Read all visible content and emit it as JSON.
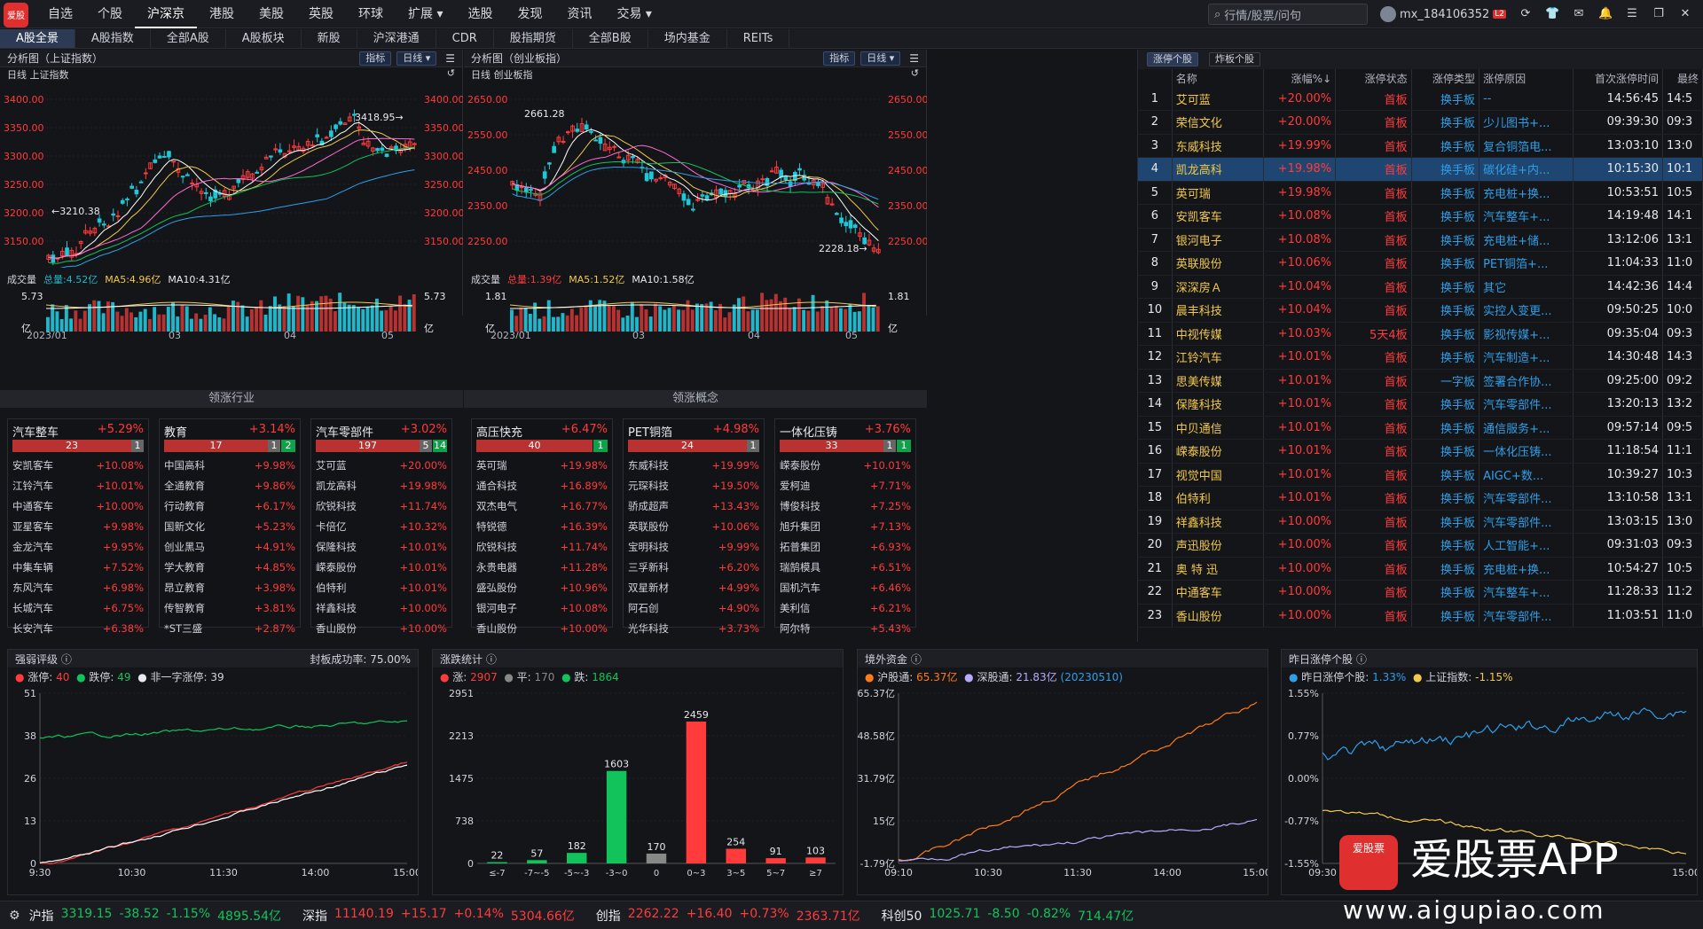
{
  "nav": {
    "logo": "爱股",
    "items": [
      "自选",
      "个股",
      "沪深京",
      "港股",
      "美股",
      "英股",
      "环球",
      "扩展 ▾",
      "选股",
      "发现",
      "资讯",
      "交易 ▾"
    ],
    "active": 2,
    "search_placeholder": "行情/股票/问句",
    "user": "mx_184106352",
    "user_badge": "L2"
  },
  "subtabs": {
    "items": [
      "A股全景",
      "A股指数",
      "全部A股",
      "A股板块",
      "新股",
      "沪深港通",
      "CDR",
      "股指期货",
      "全部B股",
      "场内基金",
      "REITs"
    ],
    "active": 0
  },
  "left_chart": {
    "title": "分析图（上证指数）",
    "btn1": "指标",
    "btn2": "日线 ▾",
    "sub": "日线  上证指数",
    "yticks": [
      "3400.00",
      "3350.00",
      "3300.00",
      "3250.00",
      "3200.00",
      "3150.00"
    ],
    "high_label": "3418.95→",
    "low_label": "←3210.38",
    "vol_label": "成交量",
    "vol_total": "总量:4.52亿",
    "vol_ma5": "MA5:4.96亿",
    "vol_ma10": "MA10:4.31亿",
    "vol_max": "5.73",
    "vol_unit": "亿",
    "xticks": [
      "2023/01",
      "03",
      "04",
      "05"
    ]
  },
  "mid_chart": {
    "title": "分析图（创业板指）",
    "btn1": "指标",
    "btn2": "日线 ▾",
    "sub": "日线  创业板指",
    "yticks": [
      "2650.00",
      "2550.00",
      "2450.00",
      "2350.00",
      "2250.00"
    ],
    "high_label": "2661.28",
    "low_label": "2228.18→",
    "vol_label": "成交量",
    "vol_total": "总量:1.39亿",
    "vol_ma5": "MA5:1.52亿",
    "vol_ma10": "MA10:1.58亿",
    "vol_max": "1.81",
    "vol_unit": "亿",
    "xticks": [
      "2023/01",
      "03",
      "04",
      "05"
    ]
  },
  "industry": {
    "title": "领涨行业",
    "cards": [
      {
        "name": "汽车整车",
        "pct": "+5.29%",
        "up": "23",
        "flat": "1",
        "down": "",
        "rows": [
          [
            "安凯客车",
            "+10.08%"
          ],
          [
            "江铃汽车",
            "+10.01%"
          ],
          [
            "中通客车",
            "+10.00%"
          ],
          [
            "亚星客车",
            "+9.98%"
          ],
          [
            "金龙汽车",
            "+9.95%"
          ],
          [
            "中集车辆",
            "+7.52%"
          ],
          [
            "东风汽车",
            "+6.98%"
          ],
          [
            "长城汽车",
            "+6.75%"
          ],
          [
            "长安汽车",
            "+6.38%"
          ]
        ]
      },
      {
        "name": "教育",
        "pct": "+3.14%",
        "up": "17",
        "flat": "1",
        "down": "2",
        "rows": [
          [
            "中国高科",
            "+9.98%"
          ],
          [
            "全通教育",
            "+9.86%"
          ],
          [
            "行动教育",
            "+6.17%"
          ],
          [
            "国新文化",
            "+5.23%"
          ],
          [
            "创业黑马",
            "+4.91%"
          ],
          [
            "学大教育",
            "+4.85%"
          ],
          [
            "昂立教育",
            "+3.98%"
          ],
          [
            "传智教育",
            "+3.81%"
          ],
          [
            "*ST三盛",
            "+2.87%"
          ]
        ]
      },
      {
        "name": "汽车零部件",
        "pct": "+3.02%",
        "up": "197",
        "flat": "5",
        "down": "14",
        "rows": [
          [
            "艾可蓝",
            "+20.00%"
          ],
          [
            "凯龙高科",
            "+19.98%"
          ],
          [
            "欣锐科技",
            "+11.74%"
          ],
          [
            "卡倍亿",
            "+10.32%"
          ],
          [
            "保隆科技",
            "+10.01%"
          ],
          [
            "嵘泰股份",
            "+10.01%"
          ],
          [
            "伯特利",
            "+10.01%"
          ],
          [
            "祥鑫科技",
            "+10.00%"
          ],
          [
            "香山股份",
            "+10.00%"
          ]
        ]
      }
    ]
  },
  "concept": {
    "title": "领涨概念",
    "cards": [
      {
        "name": "高压快充",
        "pct": "+6.47%",
        "up": "40",
        "flat": "",
        "down": "1",
        "rows": [
          [
            "英可瑞",
            "+19.98%"
          ],
          [
            "通合科技",
            "+16.89%"
          ],
          [
            "双杰电气",
            "+16.77%"
          ],
          [
            "特锐德",
            "+16.39%"
          ],
          [
            "欣锐科技",
            "+11.74%"
          ],
          [
            "永贵电器",
            "+11.28%"
          ],
          [
            "盛弘股份",
            "+10.96%"
          ],
          [
            "银河电子",
            "+10.08%"
          ],
          [
            "香山股份",
            "+10.00%"
          ]
        ]
      },
      {
        "name": "PET铜箔",
        "pct": "+4.98%",
        "up": "24",
        "flat": "1",
        "down": "",
        "rows": [
          [
            "东威科技",
            "+19.99%"
          ],
          [
            "元琛科技",
            "+19.50%"
          ],
          [
            "骄成超声",
            "+13.43%"
          ],
          [
            "英联股份",
            "+10.06%"
          ],
          [
            "宝明科技",
            "+9.99%"
          ],
          [
            "三孚新科",
            "+6.20%"
          ],
          [
            "双星新材",
            "+4.99%"
          ],
          [
            "阿石创",
            "+4.90%"
          ],
          [
            "光华科技",
            "+3.73%"
          ]
        ]
      },
      {
        "name": "一体化压铸",
        "pct": "+3.76%",
        "up": "33",
        "flat": "1",
        "down": "1",
        "rows": [
          [
            "嵘泰股份",
            "+10.01%"
          ],
          [
            "爱柯迪",
            "+7.71%"
          ],
          [
            "博俊科技",
            "+7.25%"
          ],
          [
            "旭升集团",
            "+7.13%"
          ],
          [
            "拓普集团",
            "+6.93%"
          ],
          [
            "瑞鹄模具",
            "+6.51%"
          ],
          [
            "国机汽车",
            "+6.46%"
          ],
          [
            "美利信",
            "+6.21%"
          ],
          [
            "阿尔特",
            "+5.43%"
          ]
        ]
      }
    ]
  },
  "limit_table": {
    "tabs": [
      "涨停个股",
      "炸板个股"
    ],
    "headers": [
      "",
      "名称",
      "涨幅%↓",
      "涨停状态",
      "涨停类型",
      "涨停原因",
      "首次涨停时间",
      "最终"
    ],
    "rows": [
      [
        "1",
        "艾可蓝",
        "+20.00%",
        "首板",
        "换手板",
        "--",
        "14:56:45",
        "14:5"
      ],
      [
        "2",
        "荣信文化",
        "+20.00%",
        "首板",
        "换手板",
        "少儿图书+...",
        "09:39:30",
        "09:3"
      ],
      [
        "3",
        "东威科技",
        "+19.99%",
        "首板",
        "换手板",
        "复合铜箔电...",
        "13:03:10",
        "13:0"
      ],
      [
        "4",
        "凯龙高科",
        "+19.98%",
        "首板",
        "换手板",
        "碳化硅+内...",
        "10:15:30",
        "10:1"
      ],
      [
        "5",
        "英可瑞",
        "+19.98%",
        "首板",
        "换手板",
        "充电桩+换...",
        "10:53:51",
        "10:5"
      ],
      [
        "6",
        "安凯客车",
        "+10.08%",
        "首板",
        "换手板",
        "汽车整车+...",
        "14:19:48",
        "14:1"
      ],
      [
        "7",
        "银河电子",
        "+10.08%",
        "首板",
        "换手板",
        "充电桩+储...",
        "13:12:06",
        "13:1"
      ],
      [
        "8",
        "英联股份",
        "+10.06%",
        "首板",
        "换手板",
        "PET铜箔+...",
        "11:04:33",
        "11:0"
      ],
      [
        "9",
        "深深房Ａ",
        "+10.04%",
        "首板",
        "换手板",
        "其它",
        "14:42:36",
        "14:4"
      ],
      [
        "10",
        "晨丰科技",
        "+10.04%",
        "首板",
        "换手板",
        "实控人变更...",
        "09:50:25",
        "10:0"
      ],
      [
        "11",
        "中视传媒",
        "+10.03%",
        "5天4板",
        "换手板",
        "影视传媒+...",
        "09:35:04",
        "09:3"
      ],
      [
        "12",
        "江铃汽车",
        "+10.01%",
        "首板",
        "换手板",
        "汽车制造+...",
        "14:30:48",
        "14:3"
      ],
      [
        "13",
        "思美传媒",
        "+10.01%",
        "首板",
        "一字板",
        "签署合作协...",
        "09:25:00",
        "09:2"
      ],
      [
        "14",
        "保隆科技",
        "+10.01%",
        "首板",
        "换手板",
        "汽车零部件...",
        "13:20:13",
        "13:2"
      ],
      [
        "15",
        "中贝通信",
        "+10.01%",
        "首板",
        "换手板",
        "通信服务+...",
        "09:57:14",
        "09:5"
      ],
      [
        "16",
        "嵘泰股份",
        "+10.01%",
        "首板",
        "换手板",
        "一体化压铸...",
        "11:18:54",
        "11:1"
      ],
      [
        "17",
        "视觉中国",
        "+10.01%",
        "首板",
        "换手板",
        "AIGC+数...",
        "10:39:27",
        "10:3"
      ],
      [
        "18",
        "伯特利",
        "+10.01%",
        "首板",
        "换手板",
        "汽车零部件...",
        "13:10:58",
        "13:1"
      ],
      [
        "19",
        "祥鑫科技",
        "+10.00%",
        "首板",
        "换手板",
        "汽车零部件...",
        "13:03:15",
        "13:0"
      ],
      [
        "20",
        "声迅股份",
        "+10.00%",
        "首板",
        "换手板",
        "人工智能+...",
        "09:31:03",
        "09:3"
      ],
      [
        "21",
        "奥 特 迅",
        "+10.00%",
        "首板",
        "换手板",
        "充电桩+换...",
        "10:54:27",
        "10:5"
      ],
      [
        "22",
        "中通客车",
        "+10.00%",
        "首板",
        "换手板",
        "汽车整车+...",
        "11:28:33",
        "11:2"
      ],
      [
        "23",
        "香山股份",
        "+10.00%",
        "首板",
        "换手板",
        "汽车零部件...",
        "11:03:51",
        "11:0"
      ]
    ],
    "selected": 3
  },
  "bottom": {
    "strength": {
      "title": "强弱评级",
      "info": "封板成功率:",
      "rate": "75.00%",
      "leg1": "涨停:",
      "v1": "40",
      "leg2": "跌停:",
      "v2": "49",
      "leg3": "非一字涨停:",
      "v3": "39",
      "yticks": [
        "51",
        "38",
        "26",
        "13",
        "0"
      ],
      "xticks": [
        "9:30",
        "10:30",
        "11:30",
        "14:00",
        "15:00"
      ]
    },
    "updown": {
      "title": "涨跌统计",
      "leg1": "涨:",
      "v1": "2907",
      "leg2": "平:",
      "v2": "170",
      "leg3": "跌:",
      "v3": "1864",
      "yticks": [
        "2951",
        "2213",
        "1475",
        "738",
        "0"
      ]
    },
    "foreign": {
      "title": "境外资金",
      "leg1": "沪股通:",
      "v1": "65.37亿",
      "leg2": "深股通:",
      "v2": "21.83亿",
      "date": "(20230510)",
      "yticks": [
        "65.37亿",
        "48.58亿",
        "31.79亿",
        "15亿",
        "-1.79亿"
      ],
      "xticks": [
        "09:10",
        "10:30",
        "11:30",
        "14:00",
        "15:00"
      ]
    },
    "yesterday": {
      "title": "昨日涨停个股",
      "leg1": "昨日涨停个股:",
      "v1": "1.33%",
      "leg2": "上证指数:",
      "v2": "-1.15%",
      "yticks": [
        "1.55%",
        "0.77%",
        "0.00%",
        "-0.77%",
        "-1.55%"
      ],
      "xticks": [
        "09:30",
        "15:00"
      ]
    }
  },
  "chart_data": [
    {
      "type": "bar",
      "title": "涨跌统计",
      "categories": [
        "≤-7",
        "-7~-5",
        "-5~-3",
        "-3~0",
        "0",
        "0~3",
        "3~5",
        "5~7",
        "≥7"
      ],
      "values": [
        22,
        57,
        182,
        1603,
        170,
        2459,
        254,
        91,
        103
      ],
      "colors": [
        "#11c35a",
        "#11c35a",
        "#11c35a",
        "#11c35a",
        "#888888",
        "#ff3b3b",
        "#ff3b3b",
        "#ff3b3b",
        "#ff3b3b"
      ],
      "ylim": [
        0,
        2951
      ]
    }
  ],
  "statusbar": {
    "items": [
      {
        "name": "沪指",
        "price": "3319.15",
        "chg": "-38.52",
        "pct": "-1.15%",
        "amt": "4895.54亿",
        "dir": "down"
      },
      {
        "name": "深指",
        "price": "11140.19",
        "chg": "+15.17",
        "pct": "+0.14%",
        "amt": "5304.66亿",
        "dir": "up"
      },
      {
        "name": "创指",
        "price": "2262.22",
        "chg": "+16.40",
        "pct": "+0.73%",
        "amt": "2363.71亿",
        "dir": "up"
      },
      {
        "name": "科创50",
        "price": "1025.71",
        "chg": "-8.50",
        "pct": "-0.82%",
        "amt": "714.47亿",
        "dir": "down"
      }
    ]
  },
  "watermark": {
    "brand": "爱股票APP",
    "url": "www.aigupiao.com",
    "icon_text": "爱股票"
  }
}
